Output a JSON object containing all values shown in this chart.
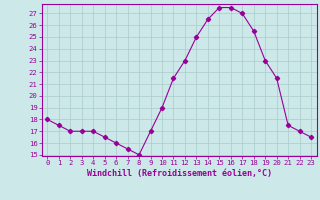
{
  "x": [
    0,
    1,
    2,
    3,
    4,
    5,
    6,
    7,
    8,
    9,
    10,
    11,
    12,
    13,
    14,
    15,
    16,
    17,
    18,
    19,
    20,
    21,
    22,
    23
  ],
  "y": [
    18,
    17.5,
    17,
    17,
    17,
    16.5,
    16,
    15.5,
    15,
    17,
    19,
    21.5,
    23,
    25,
    26.5,
    27.5,
    27.5,
    27,
    25.5,
    23,
    21.5,
    17.5,
    17,
    16.5
  ],
  "line_color": "#990099",
  "marker": "D",
  "marker_size": 2.2,
  "bg_color": "#cce8e8",
  "grid_color": "#aacccc",
  "xlabel": "Windchill (Refroidissement éolien,°C)",
  "xlabel_color": "#990099",
  "tick_color": "#990099",
  "ylim": [
    15,
    27.5
  ],
  "yticks": [
    15,
    16,
    17,
    18,
    19,
    20,
    21,
    22,
    23,
    24,
    25,
    26,
    27
  ],
  "xlim": [
    -0.5,
    23.5
  ],
  "xticks": [
    0,
    1,
    2,
    3,
    4,
    5,
    6,
    7,
    8,
    9,
    10,
    11,
    12,
    13,
    14,
    15,
    16,
    17,
    18,
    19,
    20,
    21,
    22,
    23
  ],
  "spine_color": "#990099",
  "linewidth": 0.8,
  "xlabel_fontsize": 6.0,
  "tick_fontsize": 5.2
}
